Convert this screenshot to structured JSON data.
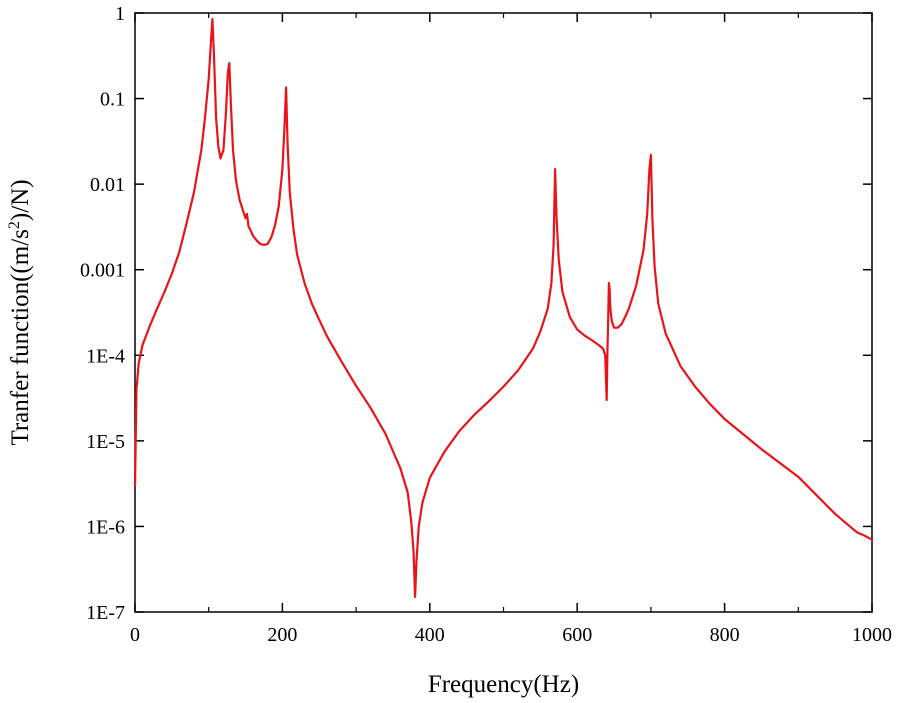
{
  "chart_data": {
    "type": "line",
    "title": "",
    "xlabel": "Frequency(Hz)",
    "ylabel": {
      "prefix": "Tranfer function((m/s",
      "superscript": "2",
      "suffix": ")/N)"
    },
    "xlim": [
      0,
      1000
    ],
    "ylim": [
      1e-07,
      1
    ],
    "y_scale": "log",
    "grid": false,
    "legend": "none",
    "x_ticks": [
      0,
      200,
      400,
      600,
      800,
      1000
    ],
    "x_tick_labels": [
      "0",
      "200",
      "400",
      "600",
      "800",
      "1000"
    ],
    "y_ticks": [
      1e-07,
      1e-06,
      1e-05,
      0.0001,
      0.001,
      0.01,
      0.1,
      1
    ],
    "y_tick_labels": [
      "1E-7",
      "1E-6",
      "1E-5",
      "1E-4",
      "0.001",
      "0.01",
      "0.1",
      "1"
    ],
    "series": [
      {
        "color": "#e8141a",
        "x": [
          0,
          2,
          5,
          10,
          20,
          30,
          40,
          50,
          60,
          70,
          80,
          90,
          95,
          100,
          103,
          105,
          107,
          110,
          113,
          116,
          120,
          123,
          126,
          128,
          130,
          133,
          137,
          142,
          148,
          150,
          152,
          154,
          156,
          160,
          165,
          170,
          175,
          180,
          185,
          190,
          195,
          200,
          203,
          205,
          207,
          210,
          215,
          220,
          230,
          240,
          250,
          260,
          280,
          300,
          320,
          340,
          360,
          370,
          375,
          378,
          380,
          382,
          385,
          390,
          400,
          420,
          440,
          460,
          480,
          500,
          520,
          540,
          550,
          560,
          565,
          568,
          570,
          572,
          575,
          580,
          590,
          600,
          610,
          620,
          630,
          635,
          638,
          640,
          641,
          642,
          643,
          644,
          645,
          647,
          650,
          655,
          660,
          665,
          670,
          680,
          690,
          695,
          698,
          700,
          702,
          705,
          710,
          720,
          740,
          760,
          780,
          800,
          850,
          900,
          950,
          970,
          980,
          990,
          1000
        ],
        "y": [
          3e-06,
          4e-05,
          8e-05,
          0.00013,
          0.00022,
          0.00035,
          0.00055,
          0.0009,
          0.0016,
          0.0035,
          0.008,
          0.025,
          0.06,
          0.17,
          0.45,
          0.85,
          0.35,
          0.06,
          0.028,
          0.02,
          0.025,
          0.06,
          0.2,
          0.26,
          0.09,
          0.025,
          0.011,
          0.0065,
          0.0045,
          0.004,
          0.0045,
          0.0032,
          0.003,
          0.0025,
          0.0022,
          0.002,
          0.00195,
          0.002,
          0.0024,
          0.0033,
          0.0055,
          0.015,
          0.05,
          0.135,
          0.03,
          0.008,
          0.003,
          0.0015,
          0.0007,
          0.0004,
          0.00026,
          0.00017,
          8.5e-05,
          4.4e-05,
          2.4e-05,
          1.2e-05,
          4.8e-06,
          2.5e-06,
          1.1e-06,
          5e-07,
          1.5e-07,
          4e-07,
          1e-06,
          1.9e-06,
          3.7e-06,
          7.5e-06,
          1.3e-05,
          2e-05,
          2.9e-05,
          4.3e-05,
          6.7e-05,
          0.00012,
          0.00019,
          0.00035,
          0.0007,
          0.002,
          0.015,
          0.004,
          0.0013,
          0.00055,
          0.00028,
          0.0002,
          0.00017,
          0.00015,
          0.00013,
          0.00012,
          0.0001,
          3e-05,
          0.00011,
          0.00025,
          0.0007,
          0.0006,
          0.00035,
          0.00025,
          0.00021,
          0.00021,
          0.00023,
          0.00028,
          0.00035,
          0.00065,
          0.0017,
          0.0045,
          0.015,
          0.022,
          0.004,
          0.0011,
          0.0004,
          0.00018,
          7.5e-05,
          4.3e-05,
          2.7e-05,
          1.8e-05,
          8e-06,
          3.8e-06,
          1.4e-06,
          1e-06,
          8.5e-07,
          7.8e-07,
          7e-07
        ]
      }
    ]
  }
}
